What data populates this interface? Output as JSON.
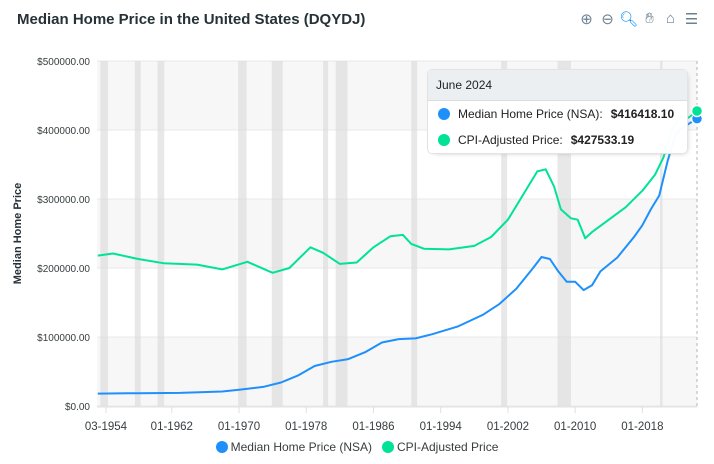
{
  "title": "Median Home Price in the United States (DQYDJ)",
  "toolbar": {
    "icons": [
      "zoom-in-icon",
      "zoom-out-icon",
      "zoom-selection-icon",
      "pan-icon",
      "home-icon",
      "menu-icon"
    ]
  },
  "colors": {
    "nsa": "#1e90fb",
    "cpi": "#00e396"
  },
  "tooltip": {
    "date": "June 2024",
    "rows": [
      {
        "label": "Median Home Price (NSA):",
        "value": "$416418.10"
      },
      {
        "label": "CPI-Adjusted Price:",
        "value": "$427533.19"
      }
    ]
  },
  "chart_data": {
    "type": "line",
    "title": "Median Home Price in the United States (DQYDJ)",
    "ylabel": "Median Home Price",
    "ylim": [
      0,
      500000
    ],
    "xlim": [
      1953.1,
      2024.5
    ],
    "yticks": [
      "$0.00",
      "$100000.00",
      "$200000.00",
      "$300000.00",
      "$400000.00",
      "$500000.00"
    ],
    "xticks": [
      {
        "label": "03-1954",
        "x": 1954.17
      },
      {
        "label": "01-1962",
        "x": 1962
      },
      {
        "label": "01-1970",
        "x": 1970
      },
      {
        "label": "01-1978",
        "x": 1978
      },
      {
        "label": "01-1986",
        "x": 1986
      },
      {
        "label": "01-1994",
        "x": 1994
      },
      {
        "label": "01-2002",
        "x": 2002
      },
      {
        "label": "01-2010",
        "x": 2010
      },
      {
        "label": "01-2018",
        "x": 2018
      }
    ],
    "recessions": [
      [
        1953.5,
        1954.4
      ],
      [
        1957.6,
        1958.3
      ],
      [
        1960.3,
        1961.1
      ],
      [
        1969.9,
        1970.9
      ],
      [
        1973.9,
        1975.2
      ],
      [
        1980,
        1980.6
      ],
      [
        1981.5,
        1982.9
      ],
      [
        1990.5,
        1991.2
      ],
      [
        2001.2,
        2001.9
      ],
      [
        2007.9,
        2009.5
      ],
      [
        2020.1,
        2020.4
      ]
    ],
    "series": [
      {
        "name": "Median Home Price (NSA)",
        "points": [
          [
            1953.2,
            18000
          ],
          [
            1958,
            18500
          ],
          [
            1963,
            19000
          ],
          [
            1968,
            21000
          ],
          [
            1970,
            23500
          ],
          [
            1973,
            28000
          ],
          [
            1975,
            34000
          ],
          [
            1977,
            44000
          ],
          [
            1979,
            58000
          ],
          [
            1981,
            64000
          ],
          [
            1983,
            68000
          ],
          [
            1985,
            78000
          ],
          [
            1987,
            92000
          ],
          [
            1989,
            97000
          ],
          [
            1991,
            98000
          ],
          [
            1993,
            104000
          ],
          [
            1996,
            115000
          ],
          [
            1999,
            132000
          ],
          [
            2001,
            148000
          ],
          [
            2003,
            170000
          ],
          [
            2005,
            200000
          ],
          [
            2006,
            216000
          ],
          [
            2007,
            213000
          ],
          [
            2008,
            195000
          ],
          [
            2009,
            180000
          ],
          [
            2010,
            180000
          ],
          [
            2011,
            168000
          ],
          [
            2012,
            175000
          ],
          [
            2013,
            195000
          ],
          [
            2015,
            215000
          ],
          [
            2017,
            245000
          ],
          [
            2018,
            262000
          ],
          [
            2019,
            285000
          ],
          [
            2020,
            305000
          ],
          [
            2021,
            355000
          ],
          [
            2022,
            395000
          ],
          [
            2023,
            405000
          ],
          [
            2024.5,
            416418.1
          ]
        ]
      },
      {
        "name": "CPI-Adjusted Price",
        "points": [
          [
            1953.2,
            218000
          ],
          [
            1955,
            221000
          ],
          [
            1958,
            213000
          ],
          [
            1961,
            207000
          ],
          [
            1965,
            205000
          ],
          [
            1968,
            198000
          ],
          [
            1971,
            209000
          ],
          [
            1972.5,
            201000
          ],
          [
            1974,
            193000
          ],
          [
            1976,
            200000
          ],
          [
            1978.5,
            230000
          ],
          [
            1980,
            222000
          ],
          [
            1982,
            206000
          ],
          [
            1984,
            208000
          ],
          [
            1986,
            230000
          ],
          [
            1988,
            246000
          ],
          [
            1989.5,
            248000
          ],
          [
            1990.5,
            235000
          ],
          [
            1992,
            228000
          ],
          [
            1995,
            227000
          ],
          [
            1998,
            232000
          ],
          [
            2000,
            245000
          ],
          [
            2002,
            270000
          ],
          [
            2004,
            310000
          ],
          [
            2005.5,
            340000
          ],
          [
            2006.5,
            343000
          ],
          [
            2007.5,
            318000
          ],
          [
            2008.3,
            285000
          ],
          [
            2009.5,
            272000
          ],
          [
            2010.3,
            270000
          ],
          [
            2011.2,
            243000
          ],
          [
            2012,
            252000
          ],
          [
            2014,
            270000
          ],
          [
            2016,
            288000
          ],
          [
            2018,
            312000
          ],
          [
            2019.5,
            335000
          ],
          [
            2020.5,
            360000
          ],
          [
            2021.5,
            400000
          ],
          [
            2022.5,
            420000
          ],
          [
            2023.5,
            418000
          ],
          [
            2024.5,
            427533.19
          ]
        ]
      }
    ]
  }
}
